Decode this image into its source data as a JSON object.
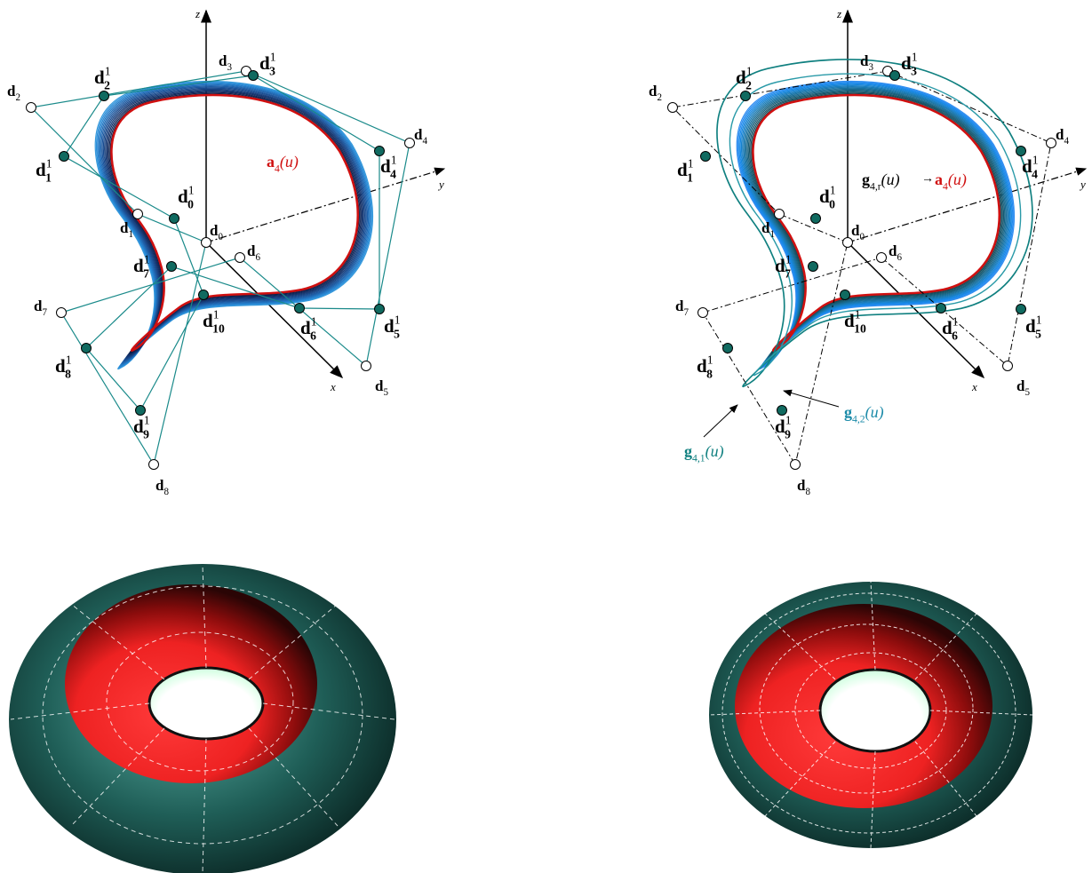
{
  "panels": [
    {
      "axis_labels": {
        "z": "z",
        "y": "y",
        "x": "x"
      },
      "labels": [
        {
          "base": "d",
          "sub": "0"
        },
        {
          "base": "d",
          "sub": "1"
        },
        {
          "base": "d",
          "sub": "2"
        },
        {
          "base": "d",
          "sub": "3"
        },
        {
          "base": "d",
          "sub": "4"
        },
        {
          "base": "d",
          "sub": "5"
        },
        {
          "base": "d",
          "sub": "6"
        },
        {
          "base": "d",
          "sub": "7"
        },
        {
          "base": "d",
          "sub": "8"
        },
        {
          "base": "d",
          "sup": "1",
          "sub": "0"
        },
        {
          "base": "d",
          "sup": "1",
          "sub": "1"
        },
        {
          "base": "d",
          "sup": "1",
          "sub": "2"
        },
        {
          "base": "d",
          "sup": "1",
          "sub": "3"
        },
        {
          "base": "d",
          "sup": "1",
          "sub": "4"
        },
        {
          "base": "d",
          "sup": "1",
          "sub": "5"
        },
        {
          "base": "d",
          "sup": "1",
          "sub": "6"
        },
        {
          "base": "d",
          "sup": "1",
          "sub": "7"
        },
        {
          "base": "d",
          "sup": "1",
          "sub": "8"
        },
        {
          "base": "d",
          "sup": "1",
          "sub": "9"
        },
        {
          "base": "d",
          "sup": "1",
          "sub": "10"
        }
      ],
      "curve_label": {
        "base": "a",
        "sub": "4",
        "arg": "(u)"
      }
    },
    {
      "axis_labels": {
        "z": "z",
        "y": "y",
        "x": "x"
      },
      "labels": [
        {
          "base": "d",
          "sub": "0"
        },
        {
          "base": "d",
          "sub": "1"
        },
        {
          "base": "d",
          "sub": "2"
        },
        {
          "base": "d",
          "sub": "3"
        },
        {
          "base": "d",
          "sub": "4"
        },
        {
          "base": "d",
          "sub": "5"
        },
        {
          "base": "d",
          "sub": "6"
        },
        {
          "base": "d",
          "sub": "7"
        },
        {
          "base": "d",
          "sub": "8"
        },
        {
          "base": "d",
          "sup": "1",
          "sub": "0"
        },
        {
          "base": "d",
          "sup": "1",
          "sub": "1"
        },
        {
          "base": "d",
          "sup": "1",
          "sub": "2"
        },
        {
          "base": "d",
          "sup": "1",
          "sub": "3"
        },
        {
          "base": "d",
          "sup": "1",
          "sub": "4"
        },
        {
          "base": "d",
          "sup": "1",
          "sub": "5"
        },
        {
          "base": "d",
          "sup": "1",
          "sub": "6"
        },
        {
          "base": "d",
          "sup": "1",
          "sub": "7"
        },
        {
          "base": "d",
          "sup": "1",
          "sub": "8"
        },
        {
          "base": "d",
          "sup": "1",
          "sub": "9"
        },
        {
          "base": "d",
          "sup": "1",
          "sub": "10"
        }
      ],
      "limit_label": {
        "left": {
          "base": "g",
          "sub": "4,r",
          "arg": "(u)"
        },
        "arrow": "→",
        "right": {
          "base": "a",
          "sub": "4",
          "arg": "(u)"
        }
      },
      "curve_labels": [
        {
          "base": "g",
          "sub": "4,2",
          "arg": "(u)"
        },
        {
          "base": "g",
          "sub": "4,1",
          "arg": "(u)"
        }
      ]
    }
  ]
}
